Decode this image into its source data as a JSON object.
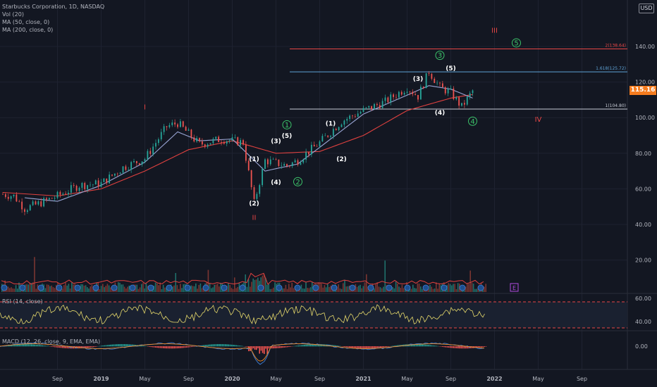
{
  "legend": {
    "symbol": "Starbucks Corporation, 1D, NASDAQ",
    "vol": "Vol (20)",
    "ma50": "MA (50, close, 0)",
    "ma200": "MA (200, close, 0)",
    "rsi": "RSI (14, close)",
    "macd": "MACD (12, 26, close, 9, EMA, EMA)"
  },
  "currency": "USD",
  "last_price": "115.16",
  "colors": {
    "background": "#131722",
    "ma50": "#9aa6d6",
    "ma200": "#e0413f",
    "fib_red": "#e84646",
    "fib_blue": "#5fa3d6",
    "fib_white": "#c8ccd6",
    "wave_green": "#3cc46a",
    "wave_red": "#e84646",
    "rsi": "#e6d96b",
    "macd": "#3d7fd9",
    "signal": "#f08a24",
    "price_tag": "#f57c1f"
  },
  "chart_data": {
    "type": "candlestick",
    "x_ticks": [
      "Sep",
      "2019",
      "May",
      "Sep",
      "2020",
      "May",
      "Sep",
      "2021",
      "May",
      "Sep",
      "2022",
      "May",
      "Sep"
    ],
    "y_ticks": [
      "140.00",
      "120.00",
      "100.00",
      "80.00",
      "60.00",
      "40.00",
      "20.00"
    ],
    "price_series": [
      {
        "date": "2018-04",
        "close": 57
      },
      {
        "date": "2018-05",
        "close": 56
      },
      {
        "date": "2018-06",
        "close": 49
      },
      {
        "date": "2018-07",
        "close": 51
      },
      {
        "date": "2018-09",
        "close": 56
      },
      {
        "date": "2018-11",
        "close": 62
      },
      {
        "date": "2019-01",
        "close": 63
      },
      {
        "date": "2019-03",
        "close": 72
      },
      {
        "date": "2019-05",
        "close": 77
      },
      {
        "date": "2019-07",
        "close": 95
      },
      {
        "date": "2019-08",
        "close": 97
      },
      {
        "date": "2019-10",
        "close": 85
      },
      {
        "date": "2019-12",
        "close": 88
      },
      {
        "date": "2020-02",
        "close": 86
      },
      {
        "date": "2020-03",
        "close": 52
      },
      {
        "date": "2020-04",
        "close": 76
      },
      {
        "date": "2020-06",
        "close": 73
      },
      {
        "date": "2020-07",
        "close": 76
      },
      {
        "date": "2020-09",
        "close": 86
      },
      {
        "date": "2020-11",
        "close": 98
      },
      {
        "date": "2021-01",
        "close": 104
      },
      {
        "date": "2021-03",
        "close": 109
      },
      {
        "date": "2021-05",
        "close": 117
      },
      {
        "date": "2021-06",
        "close": 112
      },
      {
        "date": "2021-07",
        "close": 126
      },
      {
        "date": "2021-08",
        "close": 117
      },
      {
        "date": "2021-09",
        "close": 114
      },
      {
        "date": "2021-10",
        "close": 106
      },
      {
        "date": "2021-11",
        "close": 115
      }
    ],
    "ma50": [
      {
        "date": "2018-06",
        "v": 55
      },
      {
        "date": "2018-09",
        "v": 53
      },
      {
        "date": "2019-01",
        "v": 62
      },
      {
        "date": "2019-05",
        "v": 75
      },
      {
        "date": "2019-08",
        "v": 92
      },
      {
        "date": "2019-10",
        "v": 87
      },
      {
        "date": "2020-01",
        "v": 88
      },
      {
        "date": "2020-04",
        "v": 70
      },
      {
        "date": "2020-07",
        "v": 74
      },
      {
        "date": "2020-10",
        "v": 88
      },
      {
        "date": "2021-01",
        "v": 102
      },
      {
        "date": "2021-04",
        "v": 110
      },
      {
        "date": "2021-07",
        "v": 118
      },
      {
        "date": "2021-09",
        "v": 116
      },
      {
        "date": "2021-11",
        "v": 111
      }
    ],
    "ma200": [
      {
        "date": "2018-04",
        "v": 58
      },
      {
        "date": "2018-09",
        "v": 56
      },
      {
        "date": "2019-01",
        "v": 60
      },
      {
        "date": "2019-05",
        "v": 70
      },
      {
        "date": "2019-09",
        "v": 82
      },
      {
        "date": "2020-01",
        "v": 87
      },
      {
        "date": "2020-05",
        "v": 80
      },
      {
        "date": "2020-09",
        "v": 81
      },
      {
        "date": "2021-01",
        "v": 90
      },
      {
        "date": "2021-05",
        "v": 104
      },
      {
        "date": "2021-09",
        "v": 111
      },
      {
        "date": "2021-11",
        "v": 113
      }
    ],
    "fib_levels": [
      {
        "label": "2(138.64)",
        "value": 138.64,
        "color": "#e84646"
      },
      {
        "label": "1.618(125.72)",
        "value": 125.72,
        "color": "#5fa3d6"
      },
      {
        "label": "1(104.80)",
        "value": 104.8,
        "color": "#c8ccd6"
      }
    ],
    "wave_labels": [
      {
        "text": "I",
        "date": "2019-05",
        "price": 106,
        "color": "#e84646"
      },
      {
        "text": "II",
        "date": "2020-03",
        "price": 44,
        "color": "#e84646"
      },
      {
        "text": "III",
        "date": "2022-01",
        "price": 149,
        "color": "#e84646"
      },
      {
        "text": "IV",
        "date": "2022-05",
        "price": 99,
        "color": "#e84646"
      },
      {
        "text": "1",
        "date": "2020-06",
        "price": 96,
        "color": "#3cc46a",
        "circle": true
      },
      {
        "text": "2",
        "date": "2020-07",
        "price": 64,
        "color": "#3cc46a",
        "circle": true
      },
      {
        "text": "3",
        "date": "2021-08",
        "price": 135,
        "color": "#3cc46a",
        "circle": true
      },
      {
        "text": "4",
        "date": "2021-11",
        "price": 98,
        "color": "#3cc46a",
        "circle": true
      },
      {
        "text": "5",
        "date": "2022-03",
        "price": 142,
        "color": "#3cc46a",
        "circle": true
      },
      {
        "text": "(1)",
        "date": "2020-03",
        "price": 77,
        "color": "#ffffff"
      },
      {
        "text": "(2)",
        "date": "2020-03",
        "price": 52,
        "color": "#ffffff"
      },
      {
        "text": "(3)",
        "date": "2020-05",
        "price": 87,
        "color": "#ffffff"
      },
      {
        "text": "(4)",
        "date": "2020-05",
        "price": 64,
        "color": "#ffffff"
      },
      {
        "text": "(5)",
        "date": "2020-06",
        "price": 90,
        "color": "#ffffff"
      },
      {
        "text": "(1)",
        "date": "2020-10",
        "price": 97,
        "color": "#ffffff"
      },
      {
        "text": "(2)",
        "date": "2020-11",
        "price": 77,
        "color": "#ffffff"
      },
      {
        "text": "(3)",
        "date": "2021-06",
        "price": 122,
        "color": "#ffffff"
      },
      {
        "text": "(4)",
        "date": "2021-08",
        "price": 103,
        "color": "#ffffff"
      },
      {
        "text": "(5)",
        "date": "2021-09",
        "price": 128,
        "color": "#ffffff"
      }
    ],
    "rsi_ticks": [
      "60.00",
      "40.00"
    ],
    "macd_ticks": [
      "0.00"
    ],
    "earnings_marker": "E"
  }
}
